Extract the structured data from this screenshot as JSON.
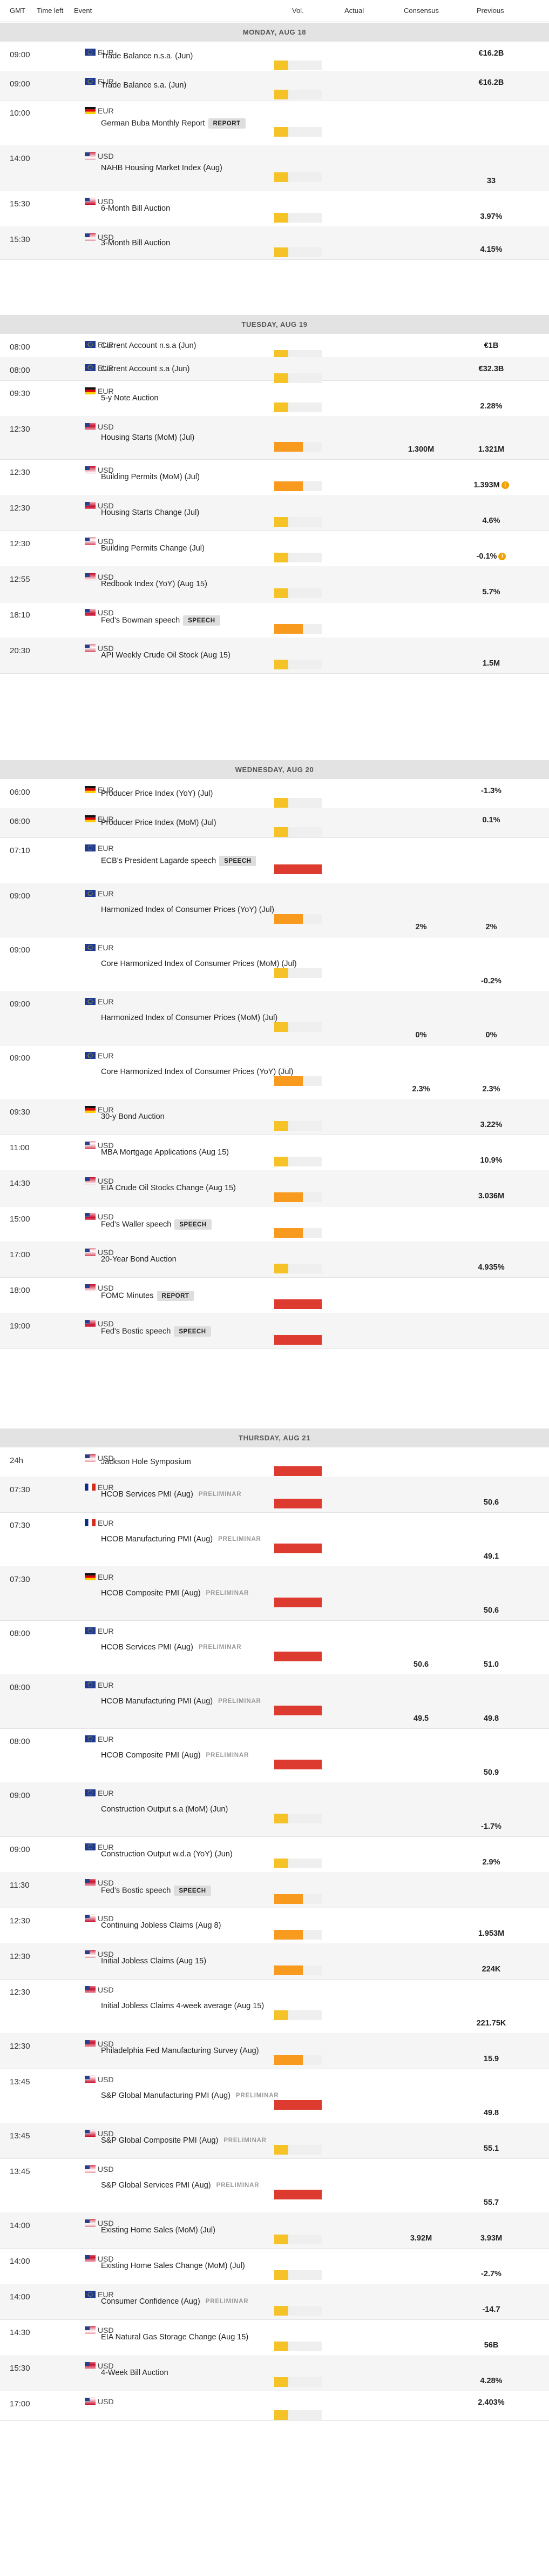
{
  "header": {
    "gmt": "GMT",
    "time_left": "Time left",
    "event": "Event",
    "vol": "Vol.",
    "actual": "Actual",
    "consensus": "Consensus",
    "previous": "Previous"
  },
  "colors": {
    "low": "#f5c228",
    "medium": "#f89a1e",
    "high": "#dd3b2f",
    "track": "#efefef",
    "day_header_bg": "#e3e3e3",
    "alt_row": "#f5f5f5"
  },
  "days": [
    {
      "label": "MONDAY, AUG 18",
      "events": [
        {
          "time": "09:00",
          "currency": "EUR",
          "flag": "eu",
          "name": "Trade Balance n.s.a. (Jun)",
          "volatility": "low",
          "consensus": "",
          "previous": "€16.2B"
        },
        {
          "time": "09:00",
          "currency": "EUR",
          "flag": "eu",
          "name": "Trade Balance s.a. (Jun)",
          "volatility": "low",
          "consensus": "",
          "previous": "€16.2B"
        },
        {
          "time": "10:00",
          "currency": "EUR",
          "flag": "de",
          "name": "German Buba Monthly Report",
          "tag": "REPORT",
          "volatility": "low",
          "consensus": "",
          "previous": ""
        },
        {
          "time": "14:00",
          "currency": "USD",
          "flag": "us",
          "name": "NAHB Housing Market Index (Aug)",
          "volatility": "low",
          "consensus": "",
          "previous": "33"
        },
        {
          "time": "15:30",
          "currency": "USD",
          "flag": "us",
          "name": "6-Month Bill Auction",
          "volatility": "low",
          "consensus": "",
          "previous": "3.97%"
        },
        {
          "time": "15:30",
          "currency": "USD",
          "flag": "us",
          "name": "3-Month Bill Auction",
          "volatility": "low",
          "consensus": "",
          "previous": "4.15%"
        }
      ]
    },
    {
      "label": "TUESDAY, AUG 19",
      "events": [
        {
          "time": "08:00",
          "currency": "EUR",
          "flag": "eu",
          "name": "Current Account n.s.a (Jun)",
          "volatility": "low",
          "consensus": "",
          "previous": "€1B"
        },
        {
          "time": "08:00",
          "currency": "EUR",
          "flag": "eu",
          "name": "Current Account s.a (Jun)",
          "volatility": "low",
          "consensus": "",
          "previous": "€32.3B"
        },
        {
          "time": "09:30",
          "currency": "EUR",
          "flag": "de",
          "name": "5-y Note Auction",
          "volatility": "low",
          "consensus": "",
          "previous": "2.28%"
        },
        {
          "time": "12:30",
          "currency": "USD",
          "flag": "us",
          "name": "Housing Starts (MoM) (Jul)",
          "volatility": "medium",
          "consensus": "1.300M",
          "previous": "1.321M"
        },
        {
          "time": "12:30",
          "currency": "USD",
          "flag": "us",
          "name": "Building Permits (MoM) (Jul)",
          "volatility": "medium",
          "consensus": "",
          "previous": "1.393M",
          "revised": true
        },
        {
          "time": "12:30",
          "currency": "USD",
          "flag": "us",
          "name": "Housing Starts Change (Jul)",
          "volatility": "low",
          "consensus": "",
          "previous": "4.6%"
        },
        {
          "time": "12:30",
          "currency": "USD",
          "flag": "us",
          "name": "Building Permits Change (Jul)",
          "volatility": "low",
          "consensus": "",
          "previous": "-0.1%",
          "revised": true
        },
        {
          "time": "12:55",
          "currency": "USD",
          "flag": "us",
          "name": "Redbook Index (YoY) (Aug 15)",
          "volatility": "low",
          "consensus": "",
          "previous": "5.7%"
        },
        {
          "time": "18:10",
          "currency": "USD",
          "flag": "us",
          "name": "Fed's Bowman speech",
          "tag": "SPEECH",
          "volatility": "medium",
          "consensus": "",
          "previous": ""
        },
        {
          "time": "20:30",
          "currency": "USD",
          "flag": "us",
          "name": "API Weekly Crude Oil Stock (Aug 15)",
          "volatility": "low",
          "consensus": "",
          "previous": "1.5M"
        }
      ]
    },
    {
      "label": "WEDNESDAY, AUG 20",
      "events": [
        {
          "time": "06:00",
          "currency": "EUR",
          "flag": "de",
          "name": "Producer Price Index (YoY) (Jul)",
          "volatility": "low",
          "consensus": "",
          "previous": "-1.3%"
        },
        {
          "time": "06:00",
          "currency": "EUR",
          "flag": "de",
          "name": "Producer Price Index (MoM) (Jul)",
          "volatility": "low",
          "consensus": "",
          "previous": "0.1%"
        },
        {
          "time": "07:10",
          "currency": "EUR",
          "flag": "eu",
          "name": "ECB's President Lagarde speech",
          "tag": "SPEECH",
          "volatility": "high",
          "consensus": "",
          "previous": ""
        },
        {
          "time": "09:00",
          "currency": "EUR",
          "flag": "eu",
          "name": "Harmonized Index of Consumer Prices (YoY) (Jul)",
          "volatility": "medium",
          "consensus": "2%",
          "previous": "2%"
        },
        {
          "time": "09:00",
          "currency": "EUR",
          "flag": "eu",
          "name": "Core Harmonized Index of Consumer Prices (MoM) (Jul)",
          "volatility": "low",
          "consensus": "",
          "previous": "-0.2%"
        },
        {
          "time": "09:00",
          "currency": "EUR",
          "flag": "eu",
          "name": "Harmonized Index of Consumer Prices (MoM) (Jul)",
          "volatility": "low",
          "consensus": "0%",
          "previous": "0%"
        },
        {
          "time": "09:00",
          "currency": "EUR",
          "flag": "eu",
          "name": "Core Harmonized Index of Consumer Prices (YoY) (Jul)",
          "volatility": "medium",
          "consensus": "2.3%",
          "previous": "2.3%"
        },
        {
          "time": "09:30",
          "currency": "EUR",
          "flag": "de",
          "name": "30-y Bond Auction",
          "volatility": "low",
          "consensus": "",
          "previous": "3.22%"
        },
        {
          "time": "11:00",
          "currency": "USD",
          "flag": "us",
          "name": "MBA Mortgage Applications (Aug 15)",
          "volatility": "low",
          "consensus": "",
          "previous": "10.9%"
        },
        {
          "time": "14:30",
          "currency": "USD",
          "flag": "us",
          "name": "EIA Crude Oil Stocks Change (Aug 15)",
          "volatility": "medium",
          "consensus": "",
          "previous": "3.036M"
        },
        {
          "time": "15:00",
          "currency": "USD",
          "flag": "us",
          "name": "Fed's Waller speech",
          "tag": "SPEECH",
          "volatility": "medium",
          "consensus": "",
          "previous": ""
        },
        {
          "time": "17:00",
          "currency": "USD",
          "flag": "us",
          "name": "20-Year Bond Auction",
          "volatility": "low",
          "consensus": "",
          "previous": "4.935%"
        },
        {
          "time": "18:00",
          "currency": "USD",
          "flag": "us",
          "name": "FOMC Minutes",
          "tag": "REPORT",
          "volatility": "high",
          "consensus": "",
          "previous": ""
        },
        {
          "time": "19:00",
          "currency": "USD",
          "flag": "us",
          "name": "Fed's Bostic speech",
          "tag": "SPEECH",
          "volatility": "high",
          "consensus": "",
          "previous": ""
        }
      ]
    },
    {
      "label": "THURSDAY, AUG 21",
      "events": [
        {
          "time": "24h",
          "currency": "USD",
          "flag": "us",
          "name": "Jackson Hole Symposium",
          "volatility": "high",
          "consensus": "",
          "previous": ""
        },
        {
          "time": "07:30",
          "currency": "EUR",
          "flag": "fr",
          "name": "HCOB Services PMI (Aug)",
          "tag2": "PRELIMINAR",
          "volatility": "high",
          "consensus": "",
          "previous": "50.6"
        },
        {
          "time": "07:30",
          "currency": "EUR",
          "flag": "fr",
          "name": "HCOB Manufacturing PMI (Aug)",
          "tag2": "PRELIMINAR",
          "volatility": "high",
          "consensus": "",
          "previous": "49.1"
        },
        {
          "time": "07:30",
          "currency": "EUR",
          "flag": "de",
          "name": "HCOB Composite PMI (Aug)",
          "tag2": "PRELIMINAR",
          "volatility": "high",
          "consensus": "",
          "previous": "50.6"
        },
        {
          "time": "08:00",
          "currency": "EUR",
          "flag": "eu",
          "name": "HCOB Services PMI (Aug)",
          "tag2": "PRELIMINAR",
          "volatility": "high",
          "consensus": "50.6",
          "previous": "51.0"
        },
        {
          "time": "08:00",
          "currency": "EUR",
          "flag": "eu",
          "name": "HCOB Manufacturing PMI (Aug)",
          "tag2": "PRELIMINAR",
          "volatility": "high",
          "consensus": "49.5",
          "previous": "49.8"
        },
        {
          "time": "08:00",
          "currency": "EUR",
          "flag": "eu",
          "name": "HCOB Composite PMI (Aug)",
          "tag2": "PRELIMINAR",
          "volatility": "high",
          "consensus": "",
          "previous": "50.9"
        },
        {
          "time": "09:00",
          "currency": "EUR",
          "flag": "eu",
          "name": "Construction Output s.a (MoM) (Jun)",
          "volatility": "low",
          "consensus": "",
          "previous": "-1.7%"
        },
        {
          "time": "09:00",
          "currency": "EUR",
          "flag": "eu",
          "name": "Construction Output w.d.a (YoY) (Jun)",
          "volatility": "low",
          "consensus": "",
          "previous": "2.9%"
        },
        {
          "time": "11:30",
          "currency": "USD",
          "flag": "us",
          "name": "Fed's Bostic speech",
          "tag": "SPEECH",
          "volatility": "medium",
          "consensus": "",
          "previous": ""
        },
        {
          "time": "12:30",
          "currency": "USD",
          "flag": "us",
          "name": "Continuing Jobless Claims (Aug 8)",
          "volatility": "medium",
          "consensus": "",
          "previous": "1.953M"
        },
        {
          "time": "12:30",
          "currency": "USD",
          "flag": "us",
          "name": "Initial Jobless Claims (Aug 15)",
          "volatility": "medium",
          "consensus": "",
          "previous": "224K"
        },
        {
          "time": "12:30",
          "currency": "USD",
          "flag": "us",
          "name": "Initial Jobless Claims 4-week average (Aug 15)",
          "volatility": "low",
          "consensus": "",
          "previous": "221.75K"
        },
        {
          "time": "12:30",
          "currency": "USD",
          "flag": "us",
          "name": "Philadelphia Fed Manufacturing Survey (Aug)",
          "volatility": "medium",
          "consensus": "",
          "previous": "15.9"
        },
        {
          "time": "13:45",
          "currency": "USD",
          "flag": "us",
          "name": "S&P Global Manufacturing PMI (Aug)",
          "tag2": "PRELIMINAR",
          "volatility": "high",
          "consensus": "",
          "previous": "49.8"
        },
        {
          "time": "13:45",
          "currency": "USD",
          "flag": "us",
          "name": "S&P Global Composite PMI (Aug)",
          "tag2": "PRELIMINAR",
          "volatility": "low",
          "consensus": "",
          "previous": "55.1"
        },
        {
          "time": "13:45",
          "currency": "USD",
          "flag": "us",
          "name": "S&P Global Services PMI (Aug)",
          "tag2": "PRELIMINAR",
          "volatility": "high",
          "consensus": "",
          "previous": "55.7"
        },
        {
          "time": "14:00",
          "currency": "USD",
          "flag": "us",
          "name": "Existing Home Sales (MoM) (Jul)",
          "volatility": "low",
          "consensus": "3.92M",
          "previous": "3.93M"
        },
        {
          "time": "14:00",
          "currency": "USD",
          "flag": "us",
          "name": "Existing Home Sales Change (MoM) (Jul)",
          "volatility": "low",
          "consensus": "",
          "previous": "-2.7%"
        },
        {
          "time": "14:00",
          "currency": "EUR",
          "flag": "eu",
          "name": "Consumer Confidence (Aug)",
          "tag2": "PRELIMINAR",
          "volatility": "low",
          "consensus": "",
          "previous": "-14.7"
        },
        {
          "time": "14:30",
          "currency": "USD",
          "flag": "us",
          "name": "EIA Natural Gas Storage Change (Aug 15)",
          "volatility": "low",
          "consensus": "",
          "previous": "56B"
        },
        {
          "time": "15:30",
          "currency": "USD",
          "flag": "us",
          "name": "4-Week Bill Auction",
          "volatility": "low",
          "consensus": "",
          "previous": "4.28%"
        },
        {
          "time": "17:00",
          "currency": "USD",
          "flag": "us",
          "name": "",
          "volatility": "low",
          "consensus": "",
          "previous": "2.403%"
        }
      ]
    }
  ]
}
